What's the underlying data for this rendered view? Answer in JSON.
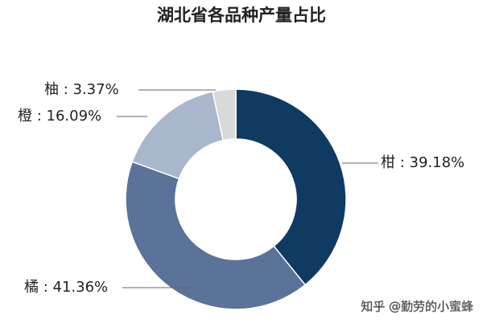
{
  "chart_data": {
    "type": "pie",
    "title": "湖北省各品种产量占比",
    "values": [
      39.18,
      41.36,
      16.09,
      3.37
    ],
    "value_labels": [
      "柑 : 39.18%",
      "橘 : 41.36%",
      "橙 : 16.09%",
      "柚 : 3.37%"
    ],
    "colors": [
      "#0f3a62",
      "#5b7299",
      "#a9b6cc",
      "#d9d9d9"
    ],
    "donut": true
  },
  "watermark": "知乎 @勤劳的小蜜蜂"
}
